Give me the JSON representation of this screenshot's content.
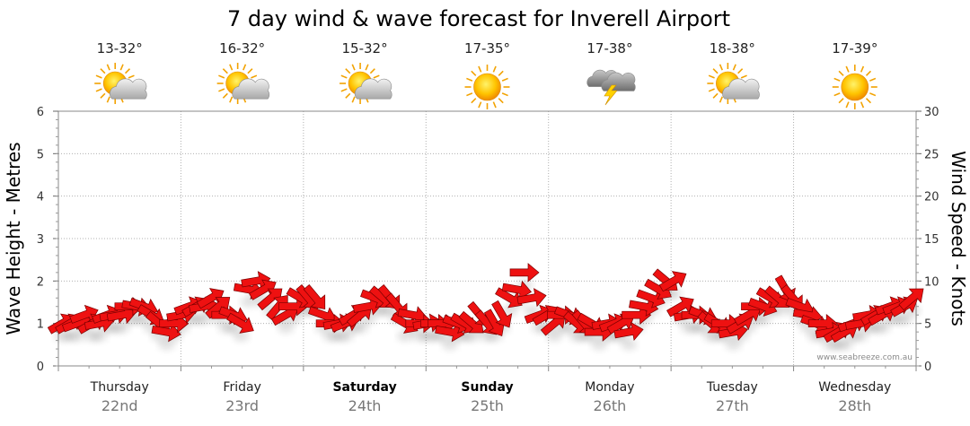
{
  "chart_data": {
    "type": "line",
    "title": "7 day wind & wave forecast for Inverell Airport",
    "ylabel": "Wave Height - Metres",
    "ylabel_right": "Wind Speed - Knots",
    "ylim": [
      0,
      6
    ],
    "ylim_right": [
      0,
      30
    ],
    "yticks": [
      "0",
      "1",
      "2",
      "3",
      "4",
      "5",
      "6"
    ],
    "yticks_right": [
      "0",
      "5",
      "10",
      "15",
      "20",
      "25",
      "30"
    ],
    "watermark": "www.seabreeze.com.au",
    "days": [
      {
        "name": "Thursday",
        "date": "22nd",
        "temp": "13-32°",
        "icon": "sun-cloud-icon",
        "bold": false
      },
      {
        "name": "Friday",
        "date": "23rd",
        "temp": "16-32°",
        "icon": "sun-cloud-icon",
        "bold": false
      },
      {
        "name": "Saturday",
        "date": "24th",
        "temp": "15-32°",
        "icon": "sun-cloud-icon",
        "bold": true
      },
      {
        "name": "Sunday",
        "date": "25th",
        "temp": "17-35°",
        "icon": "sun-icon",
        "bold": true
      },
      {
        "name": "Monday",
        "date": "26th",
        "temp": "17-38°",
        "icon": "storm-icon",
        "bold": false
      },
      {
        "name": "Tuesday",
        "date": "27th",
        "temp": "18-38°",
        "icon": "sun-cloud-icon",
        "bold": false
      },
      {
        "name": "Wednesday",
        "date": "28th",
        "temp": "17-39°",
        "icon": "sun-icon",
        "bold": false
      }
    ],
    "series": [
      {
        "color": "#ee1111",
        "unit": "knots",
        "marker": "wind-direction-arrow",
        "values": [
          5,
          5,
          5,
          6,
          5,
          5,
          6,
          6,
          6,
          7,
          7,
          7,
          6,
          5,
          4,
          5,
          6,
          7,
          7,
          7,
          8,
          7,
          6,
          6,
          5,
          9,
          10,
          9,
          8,
          7,
          6,
          7,
          8,
          8,
          8,
          6,
          5,
          5,
          5,
          6,
          6,
          7,
          8,
          8,
          8,
          7,
          5,
          6,
          5,
          5,
          5,
          5,
          4,
          5,
          5,
          5,
          6,
          5,
          5,
          6,
          8,
          9,
          11,
          8,
          6,
          6,
          5,
          6,
          6,
          5,
          5,
          5,
          4,
          5,
          5,
          5,
          4,
          6,
          7,
          8,
          9,
          10,
          10,
          7,
          6,
          6,
          6,
          5,
          5,
          5,
          4,
          5,
          6,
          7,
          7,
          8,
          8,
          9,
          8,
          7,
          6,
          5,
          5,
          4,
          4,
          4,
          5,
          5,
          6,
          6,
          6,
          7,
          7,
          7,
          8
        ]
      }
    ],
    "arrow_angles_deg": [
      60,
      60,
      70,
      70,
      60,
      80,
      70,
      80,
      80,
      90,
      100,
      110,
      120,
      130,
      100,
      90,
      80,
      70,
      60,
      80,
      60,
      50,
      90,
      110,
      120,
      100,
      80,
      60,
      50,
      40,
      60,
      90,
      120,
      140,
      140,
      110,
      90,
      80,
      70,
      60,
      50,
      80,
      110,
      130,
      140,
      140,
      120,
      100,
      90,
      80,
      90,
      90,
      100,
      110,
      120,
      130,
      140,
      140,
      150,
      150,
      120,
      100,
      90,
      80,
      70,
      60,
      50,
      90,
      110,
      130,
      140,
      120,
      90,
      80,
      70,
      60,
      80,
      90,
      100,
      110,
      120,
      130,
      60,
      60,
      80,
      90,
      110,
      130,
      120,
      90,
      80,
      60,
      60,
      90,
      110,
      120,
      130,
      150,
      140,
      110,
      100,
      110,
      90,
      80,
      60,
      60,
      70,
      80,
      80,
      60,
      60,
      70,
      70,
      60,
      50
    ]
  }
}
